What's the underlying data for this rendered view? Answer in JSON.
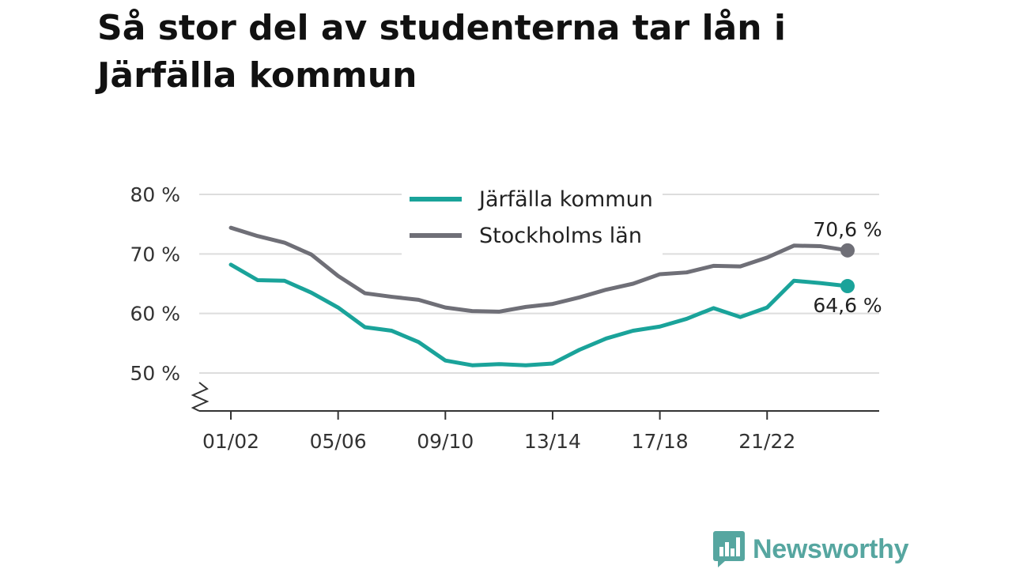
{
  "title": "Så stor del av studenterna tar lån i Järfälla kommun",
  "brand": {
    "name": "Newsworthy",
    "icon": "bar-chart-speech-bubble-icon",
    "color": "#56a6a0"
  },
  "chart_data": {
    "type": "line",
    "title": "Så stor del av studenterna tar lån i Järfälla kommun",
    "xlabel": "",
    "ylabel": "",
    "x": [
      "01/02",
      "02/03",
      "03/04",
      "04/05",
      "05/06",
      "06/07",
      "07/08",
      "08/09",
      "09/10",
      "10/11",
      "11/12",
      "12/13",
      "13/14",
      "14/15",
      "15/16",
      "16/17",
      "17/18",
      "18/19",
      "19/20",
      "20/21",
      "21/22",
      "22/23",
      "23/24",
      "24/25"
    ],
    "x_tick_labels": [
      "01/02",
      "05/06",
      "09/10",
      "13/14",
      "17/18",
      "21/22"
    ],
    "ylim": [
      45,
      80
    ],
    "y_ticks": [
      50,
      60,
      70,
      80
    ],
    "y_tick_labels": [
      "50 %",
      "60 %",
      "70 %",
      "80 %"
    ],
    "axis_break": true,
    "grid": true,
    "legend_position": "top-center",
    "series": [
      {
        "name": "Järfälla kommun",
        "color": "#1aa39a",
        "values": [
          68.2,
          65.6,
          65.5,
          63.5,
          61.0,
          57.7,
          57.1,
          55.2,
          52.1,
          51.3,
          51.5,
          51.3,
          51.6,
          53.9,
          55.8,
          57.1,
          57.8,
          59.1,
          60.9,
          59.4,
          61.0,
          65.5,
          65.1,
          64.6
        ],
        "end_label": "64,6 %"
      },
      {
        "name": "Stockholms län",
        "color": "#6f6f77",
        "values": [
          74.4,
          73.0,
          71.9,
          69.9,
          66.3,
          63.4,
          62.8,
          62.3,
          61.0,
          60.4,
          60.3,
          61.1,
          61.6,
          62.7,
          64.0,
          65.0,
          66.6,
          66.9,
          68.0,
          67.9,
          69.4,
          71.4,
          71.3,
          70.6
        ],
        "end_label": "70,6 %"
      }
    ]
  }
}
